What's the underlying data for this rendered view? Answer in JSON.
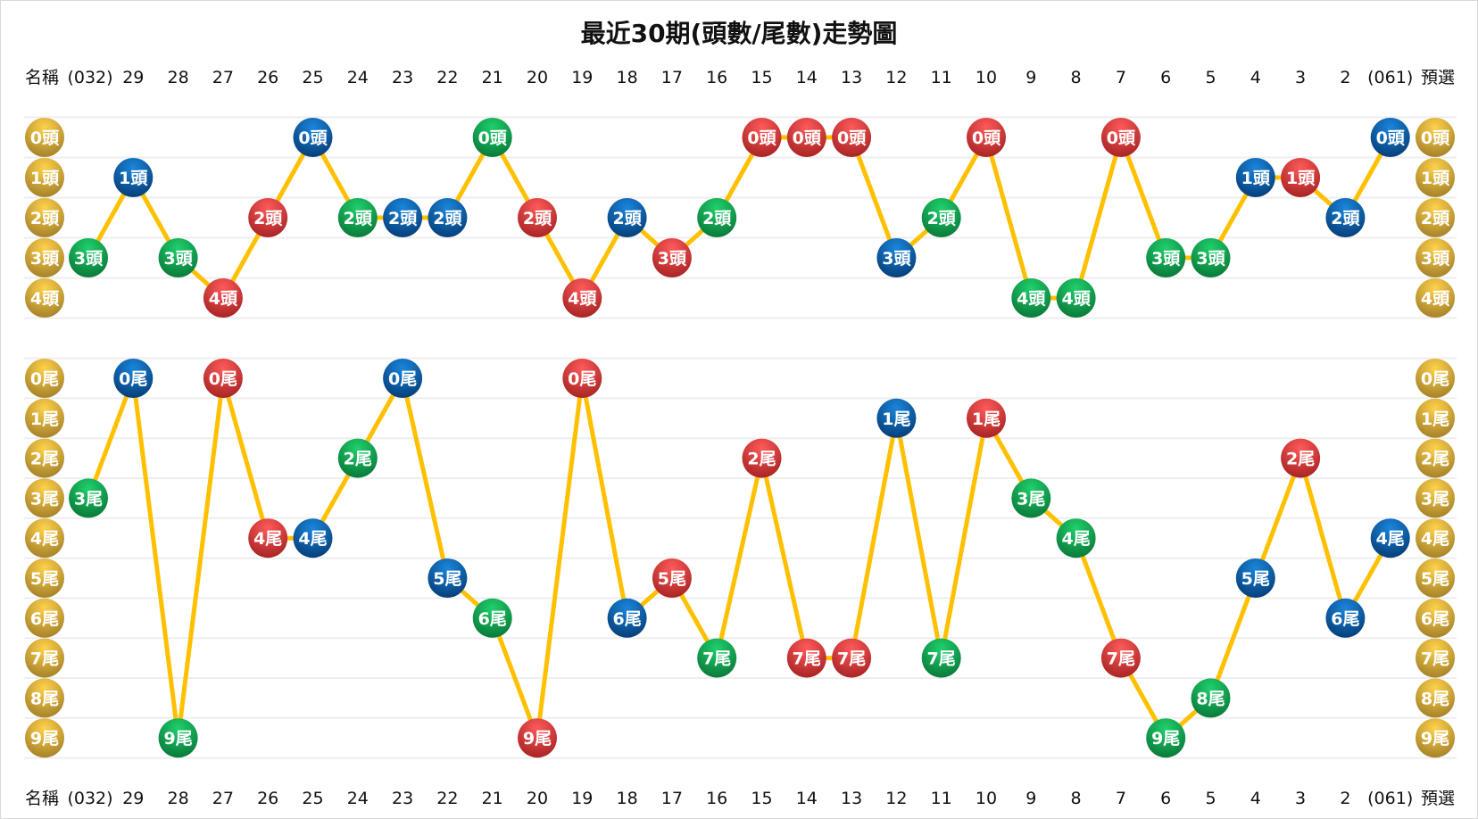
{
  "chart_data": {
    "type": "line",
    "title": "最近30期(頭數/尾數)走勢圖",
    "header_left": "名稱",
    "header_right": "預選",
    "columns": [
      "(032)",
      "29",
      "28",
      "27",
      "26",
      "25",
      "24",
      "23",
      "22",
      "21",
      "20",
      "19",
      "18",
      "17",
      "16",
      "15",
      "14",
      "13",
      "12",
      "11",
      "10",
      "9",
      "8",
      "7",
      "6",
      "5",
      "4",
      "3",
      "2",
      "(061)"
    ],
    "head_suffix": "頭",
    "tail_suffix": "尾",
    "head_levels": [
      0,
      1,
      2,
      3,
      4
    ],
    "tail_levels": [
      0,
      1,
      2,
      3,
      4,
      5,
      6,
      7,
      8,
      9
    ],
    "series": [
      {
        "values": [
          3,
          1,
          3,
          4,
          2,
          0,
          2,
          2,
          2,
          0,
          2,
          4,
          2,
          3,
          2,
          0,
          0,
          0,
          3,
          2,
          0,
          4,
          4,
          0,
          3,
          3,
          1,
          1,
          2,
          0
        ]
      },
      {
        "values": [
          3,
          0,
          9,
          0,
          4,
          4,
          2,
          0,
          5,
          6,
          9,
          0,
          6,
          5,
          7,
          2,
          7,
          7,
          1,
          7,
          1,
          3,
          4,
          7,
          9,
          8,
          5,
          2,
          6,
          4
        ]
      }
    ],
    "ball_colors": [
      "green",
      "blue",
      "green",
      "red",
      "red",
      "blue",
      "green",
      "blue",
      "blue",
      "green",
      "red",
      "red",
      "blue",
      "red",
      "green",
      "red",
      "red",
      "red",
      "blue",
      "green",
      "red",
      "green",
      "green",
      "red",
      "green",
      "green",
      "blue",
      "red",
      "blue",
      "blue"
    ],
    "colors": {
      "red": "#e03c3c",
      "blue": "#0b68b8",
      "green": "#14a852",
      "gold": "#e0b63a",
      "line": "#ffc000",
      "grid": "#eeeeee"
    }
  }
}
